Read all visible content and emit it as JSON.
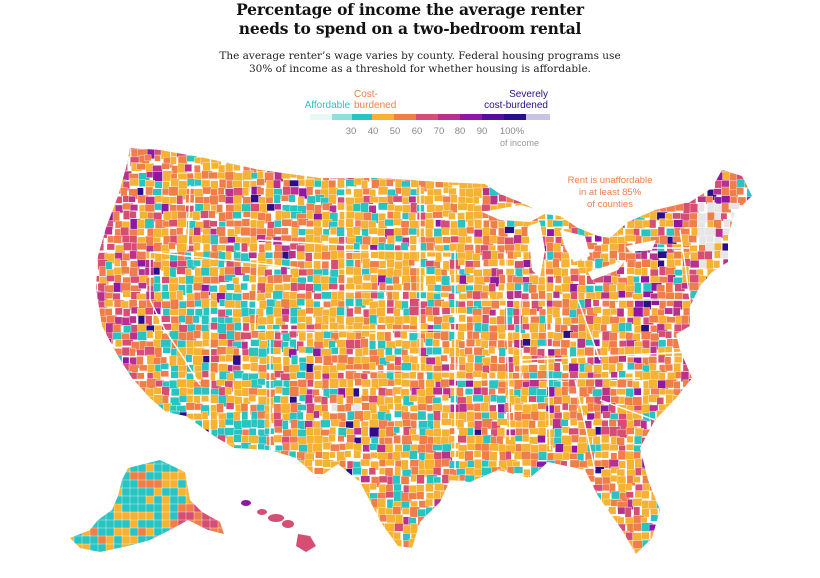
{
  "header": {
    "title_line1": "Percentage of income the average renter",
    "title_line2": "needs to spend on a two-bedroom rental",
    "subtitle": "The average renter’s wage varies by county. Federal housing programs use 30% of income as a threshold for whether housing is affordable."
  },
  "legend": {
    "affordable": "Affordable",
    "cost_burdened_1": "Cost-",
    "cost_burdened_2": "burdened",
    "severe_1": "Severely",
    "severe_2": "cost-burdened",
    "ticks": [
      "30",
      "40",
      "50",
      "60",
      "70",
      "80",
      "90",
      "100%"
    ],
    "tick_unit": "of income",
    "colors": [
      "#e7f8f7",
      "#8fe0dc",
      "#28c4c2",
      "#f6b233",
      "#f07e4a",
      "#d64e74",
      "#b9318f",
      "#8e17a3",
      "#5a0c9e",
      "#2b0f8a",
      "#c9c3e6"
    ]
  },
  "annotation": {
    "line1": "Rent is unaffordable",
    "line2": "in at least 85%",
    "line3": "of counties"
  },
  "map_colors": {
    "affordable": "#28c4c2",
    "orange_yellow": "#f6b233",
    "orange": "#f07e4a",
    "pink": "#d64e74",
    "magenta": "#b9318f",
    "purple": "#8e17a3",
    "navy": "#2b0f8a",
    "no_data": "#e6e6e6"
  }
}
